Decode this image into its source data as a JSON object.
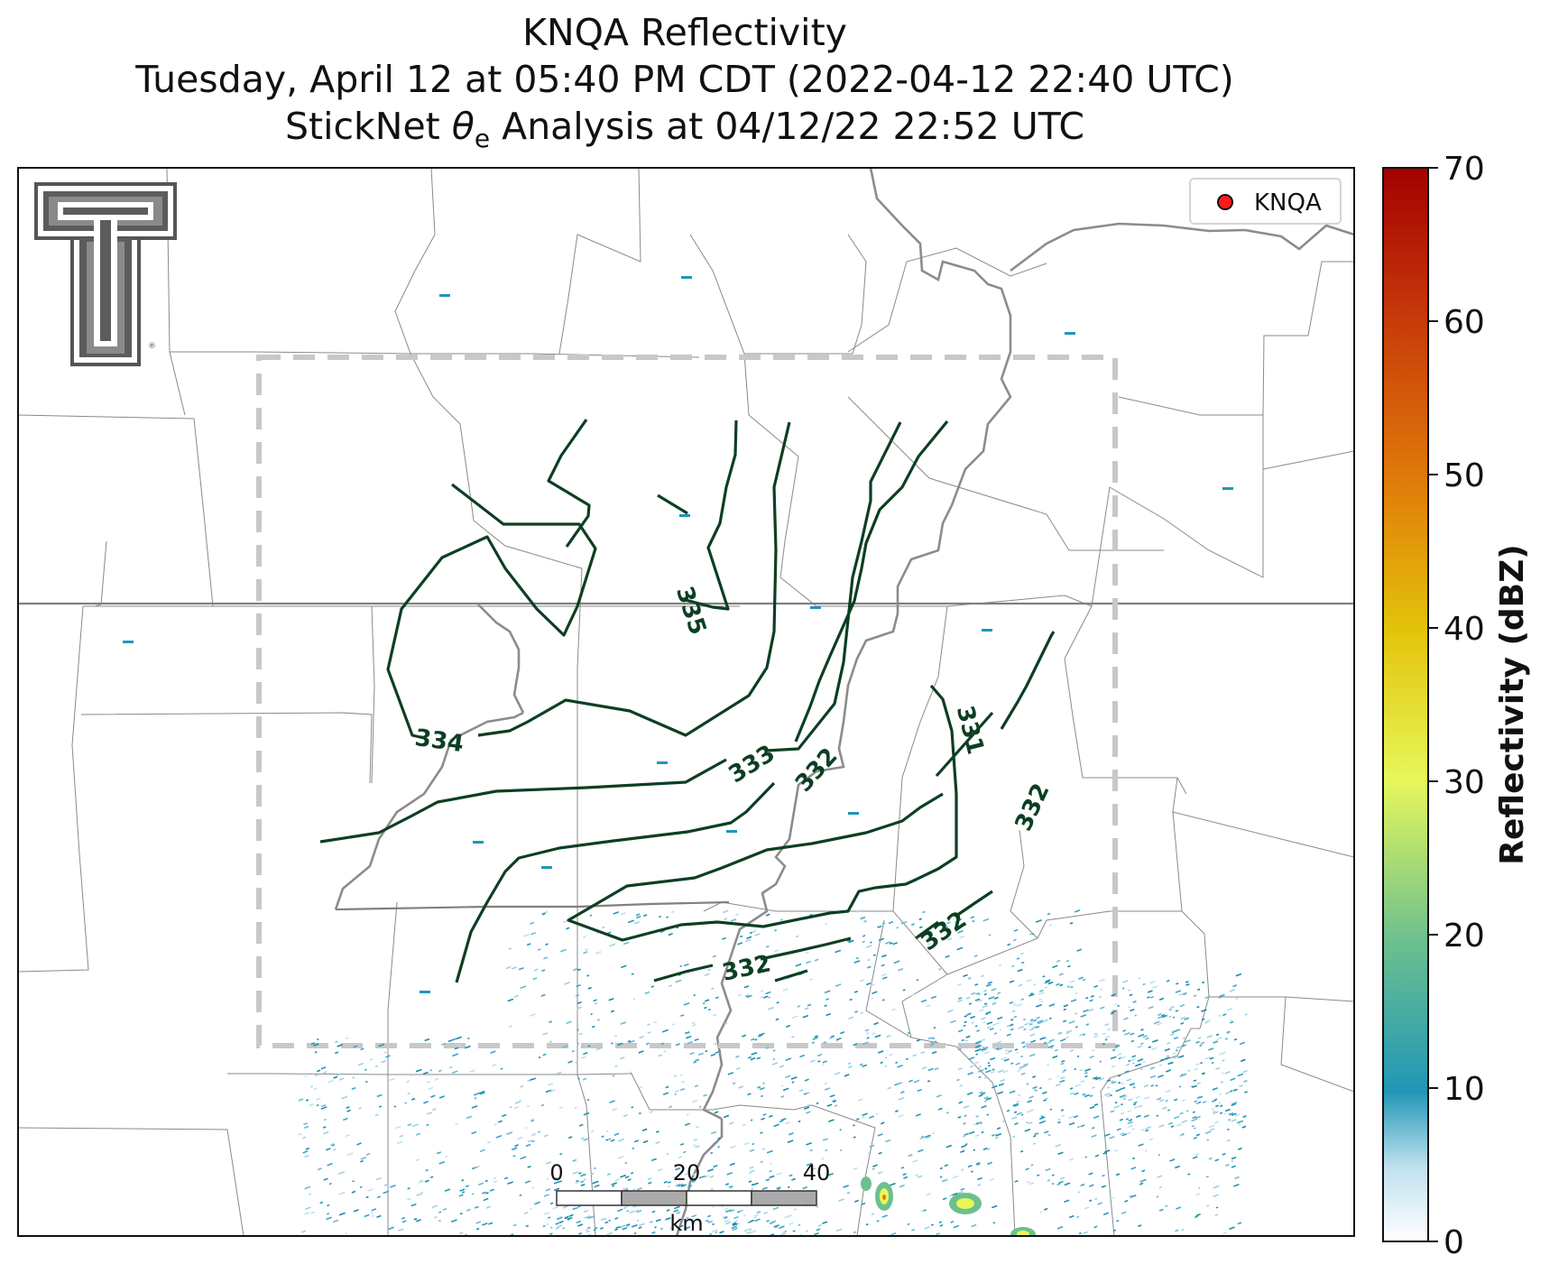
{
  "title": {
    "line1": "KNQA Reflectivity",
    "line2": "Tuesday, April 12 at 05:40 PM CDT (2022-04-12 22:40 UTC)",
    "line3_prefix": "StickNet ",
    "line3_symbol": "θ",
    "line3_sub": "e",
    "line3_suffix": " Analysis at 04/12/22 22:52 UTC"
  },
  "legend": {
    "marker_color": "#ff1a1a",
    "label": "KNQA"
  },
  "colorbar": {
    "label": "Reflectivity (dBZ)",
    "ticks": [
      "0",
      "10",
      "20",
      "30",
      "40",
      "50",
      "60",
      "70"
    ],
    "min": 0,
    "max": 70,
    "colors": [
      "#ffffff",
      "#bfe0ee",
      "#2196b6",
      "#6cc08e",
      "#e7f75a",
      "#e3c30a",
      "#e07a0a",
      "#c73a0a",
      "#a30000"
    ]
  },
  "scale_bar": {
    "ticks": [
      "0",
      "20",
      "40"
    ],
    "unit": "km"
  },
  "contour_labels": [
    "335",
    "334",
    "333",
    "332",
    "331",
    "332",
    "332",
    "332"
  ],
  "logo": {
    "name": "Texas Tech Double T"
  },
  "colors": {
    "contour": "#0c3f22",
    "boundary": "#8c8c8c",
    "analysis_box": "#c8c8c8"
  }
}
